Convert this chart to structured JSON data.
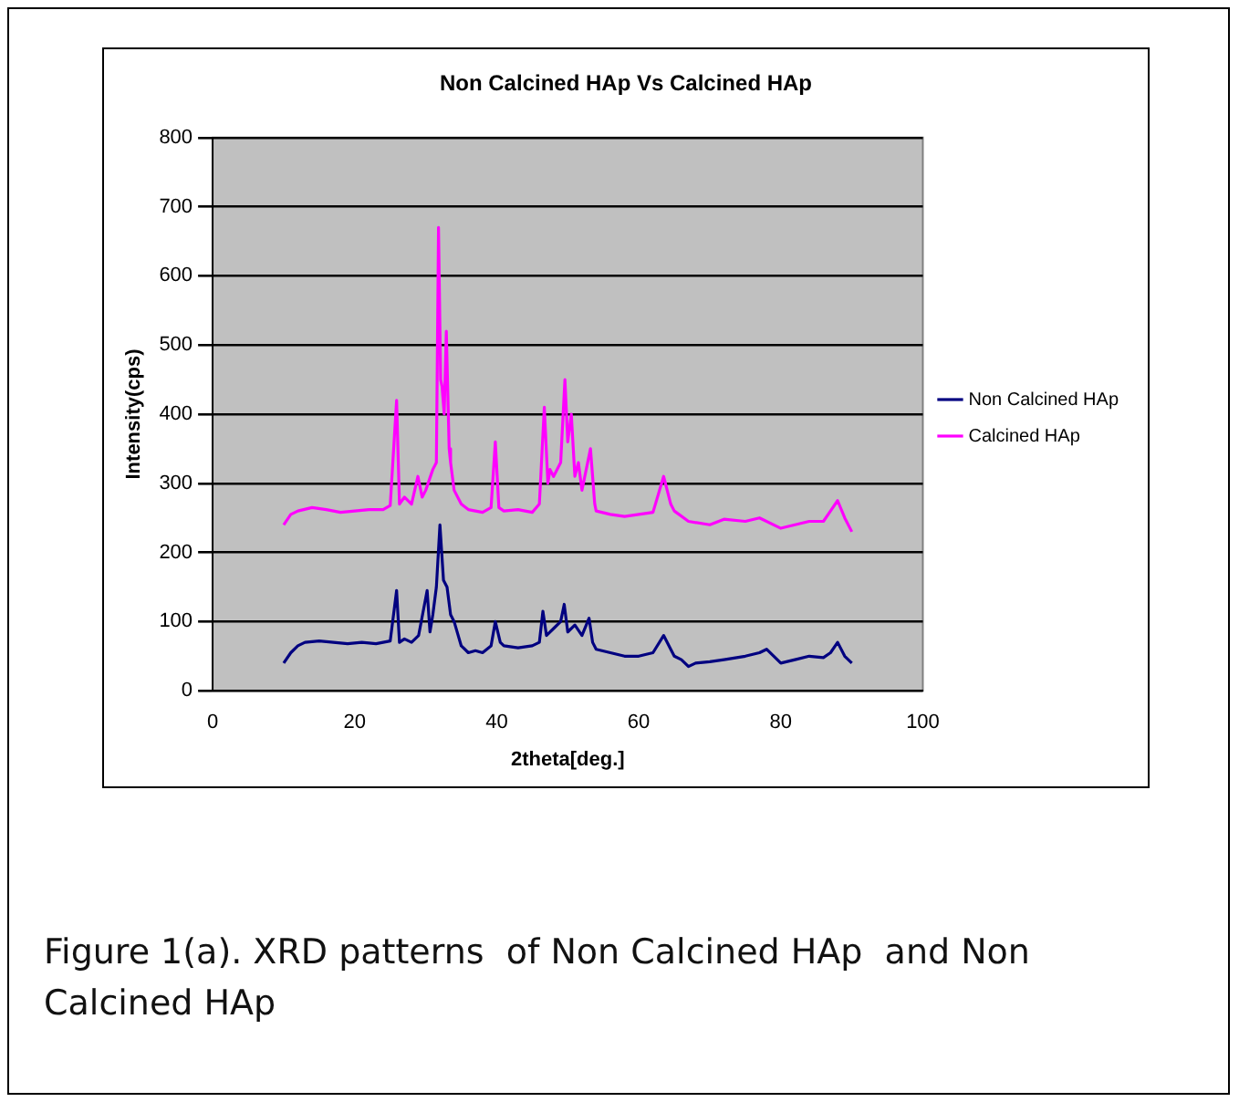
{
  "chart_data": {
    "type": "line",
    "title": "Non Calcined HAp Vs Calcined HAp",
    "xlabel": "2theta[deg.]",
    "ylabel": "Intensity(cps)",
    "xlim": [
      0,
      100
    ],
    "xticks": [
      0,
      20,
      40,
      60,
      80,
      100
    ],
    "ylim": [
      0,
      800
    ],
    "yticks": [
      0,
      100,
      200,
      300,
      400,
      500,
      600,
      700,
      800
    ],
    "grid": "y",
    "legend": "right",
    "marker": "none",
    "line_style": "solid",
    "annotations": [
      "Figure 1(a). XRD patterns  of Non Calcined HAp  and Non Calcined HAp"
    ],
    "series": [
      {
        "name": "Non Calcined HAp",
        "color": "#000080",
        "x": [
          10,
          11,
          12,
          13,
          15,
          17,
          19,
          21,
          23,
          25,
          25.9,
          26.3,
          27,
          28,
          29,
          30.2,
          30.6,
          31,
          31.5,
          32,
          32.5,
          33,
          33.5,
          34,
          35,
          36,
          37,
          38,
          39.2,
          39.8,
          40.5,
          41,
          43,
          45,
          46,
          46.5,
          47,
          48,
          49,
          49.5,
          50,
          51,
          52,
          53,
          53.5,
          54,
          56,
          58,
          60,
          62,
          63.5,
          64.5,
          65,
          66,
          67,
          68,
          70,
          72,
          75,
          77,
          78,
          80,
          82,
          84,
          86,
          87,
          88,
          89,
          90
        ],
        "values": [
          40,
          55,
          65,
          70,
          72,
          70,
          68,
          70,
          68,
          72,
          145,
          70,
          75,
          70,
          80,
          145,
          85,
          110,
          150,
          240,
          160,
          150,
          110,
          100,
          65,
          55,
          58,
          55,
          65,
          100,
          70,
          65,
          62,
          65,
          70,
          115,
          80,
          90,
          100,
          125,
          85,
          95,
          80,
          105,
          70,
          60,
          55,
          50,
          50,
          55,
          80,
          60,
          50,
          45,
          35,
          40,
          42,
          45,
          50,
          55,
          60,
          40,
          45,
          50,
          48,
          55,
          70,
          50,
          40
        ]
      },
      {
        "name": "Calcined HAp",
        "color": "#ff00ff",
        "x": [
          10,
          11,
          12,
          14,
          16,
          18,
          20,
          22,
          24,
          25,
          25.9,
          26.3,
          27,
          28,
          28.9,
          29.5,
          30,
          31,
          31.5,
          31.8,
          32.1,
          32.3,
          32.6,
          32.9,
          33.3,
          33.5,
          34,
          35,
          36,
          37,
          38,
          39.2,
          39.8,
          40.3,
          41,
          43,
          45,
          46,
          46.7,
          47.2,
          47.5,
          48,
          49,
          49.6,
          50,
          50.5,
          51,
          51.5,
          52,
          53.2,
          53.8,
          54,
          56,
          58,
          60,
          62,
          63.5,
          64.5,
          65,
          67,
          70,
          72,
          75,
          77,
          80,
          82,
          84,
          86,
          87,
          88,
          89,
          90
        ],
        "values": [
          240,
          255,
          260,
          265,
          262,
          258,
          260,
          262,
          262,
          268,
          420,
          270,
          280,
          270,
          310,
          280,
          290,
          320,
          330,
          670,
          450,
          440,
          400,
          520,
          350,
          330,
          290,
          270,
          262,
          260,
          258,
          265,
          360,
          265,
          260,
          262,
          258,
          270,
          410,
          300,
          320,
          310,
          330,
          450,
          360,
          400,
          310,
          330,
          290,
          350,
          270,
          260,
          255,
          252,
          255,
          258,
          310,
          270,
          260,
          245,
          240,
          248,
          245,
          250,
          235,
          240,
          245,
          245,
          260,
          275,
          250,
          230
        ]
      }
    ]
  }
}
